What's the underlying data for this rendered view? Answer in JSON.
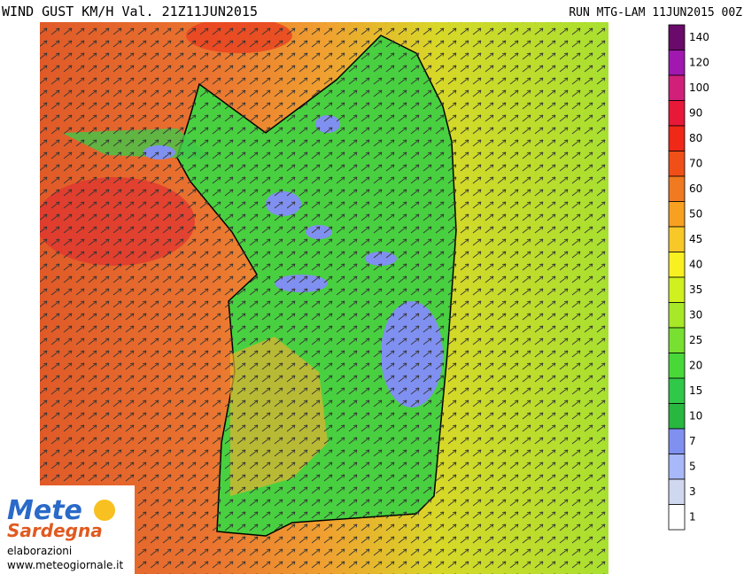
{
  "header": {
    "title": "WIND GUST KM/H Val. 21Z11JUN2015",
    "run": "RUN MTG-LAM 11JUN2015 00Z"
  },
  "legend": {
    "levels": [
      {
        "label": "140",
        "color": "#6a0a6a"
      },
      {
        "label": "120",
        "color": "#a018b0"
      },
      {
        "label": "100",
        "color": "#d0207a"
      },
      {
        "label": "90",
        "color": "#e81838"
      },
      {
        "label": "80",
        "color": "#f02818"
      },
      {
        "label": "70",
        "color": "#f05018"
      },
      {
        "label": "60",
        "color": "#f07a20"
      },
      {
        "label": "50",
        "color": "#f8a020"
      },
      {
        "label": "45",
        "color": "#f8c828"
      },
      {
        "label": "40",
        "color": "#f8f020"
      },
      {
        "label": "35",
        "color": "#d0f020"
      },
      {
        "label": "30",
        "color": "#a8e828"
      },
      {
        "label": "25",
        "color": "#78e030"
      },
      {
        "label": "20",
        "color": "#48d838"
      },
      {
        "label": "15",
        "color": "#30c848"
      },
      {
        "label": "10",
        "color": "#28b840"
      },
      {
        "label": "7",
        "color": "#8090f0"
      },
      {
        "label": "5",
        "color": "#a8b8f8"
      },
      {
        "label": "3",
        "color": "#d0d8f0"
      },
      {
        "label": "1",
        "color": "#ffffff"
      }
    ]
  },
  "logo": {
    "name1": "Mete",
    "name2": "Sardegna",
    "caption": "elaborazioni",
    "url": "www.meteogiornale.it"
  }
}
